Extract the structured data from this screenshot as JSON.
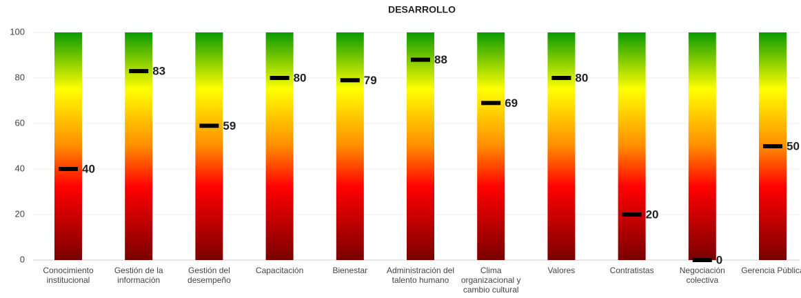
{
  "chart_data": {
    "type": "gauge-bar",
    "title": "DESARROLLO",
    "categories": [
      "Conocimiento institucional",
      "Gestión de la información",
      "Gestión del desempeño",
      "Capacitación",
      "Bienestar",
      "Administración del talento humano",
      "Clima organizacional y cambio cultural",
      "Valores",
      "Contratistas",
      "Negociación colectiva",
      "Gerencia Pública"
    ],
    "values": [
      40,
      83,
      59,
      80,
      79,
      88,
      69,
      80,
      20,
      0,
      50
    ],
    "color": "#000000",
    "gradient": [
      "#0a9a00",
      "#ffff00",
      "#ff8c00",
      "#ff0000",
      "#7a0000"
    ],
    "ylim": [
      0,
      100
    ],
    "yticks": [
      0,
      20,
      40,
      60,
      80,
      100
    ],
    "grid": true
  }
}
